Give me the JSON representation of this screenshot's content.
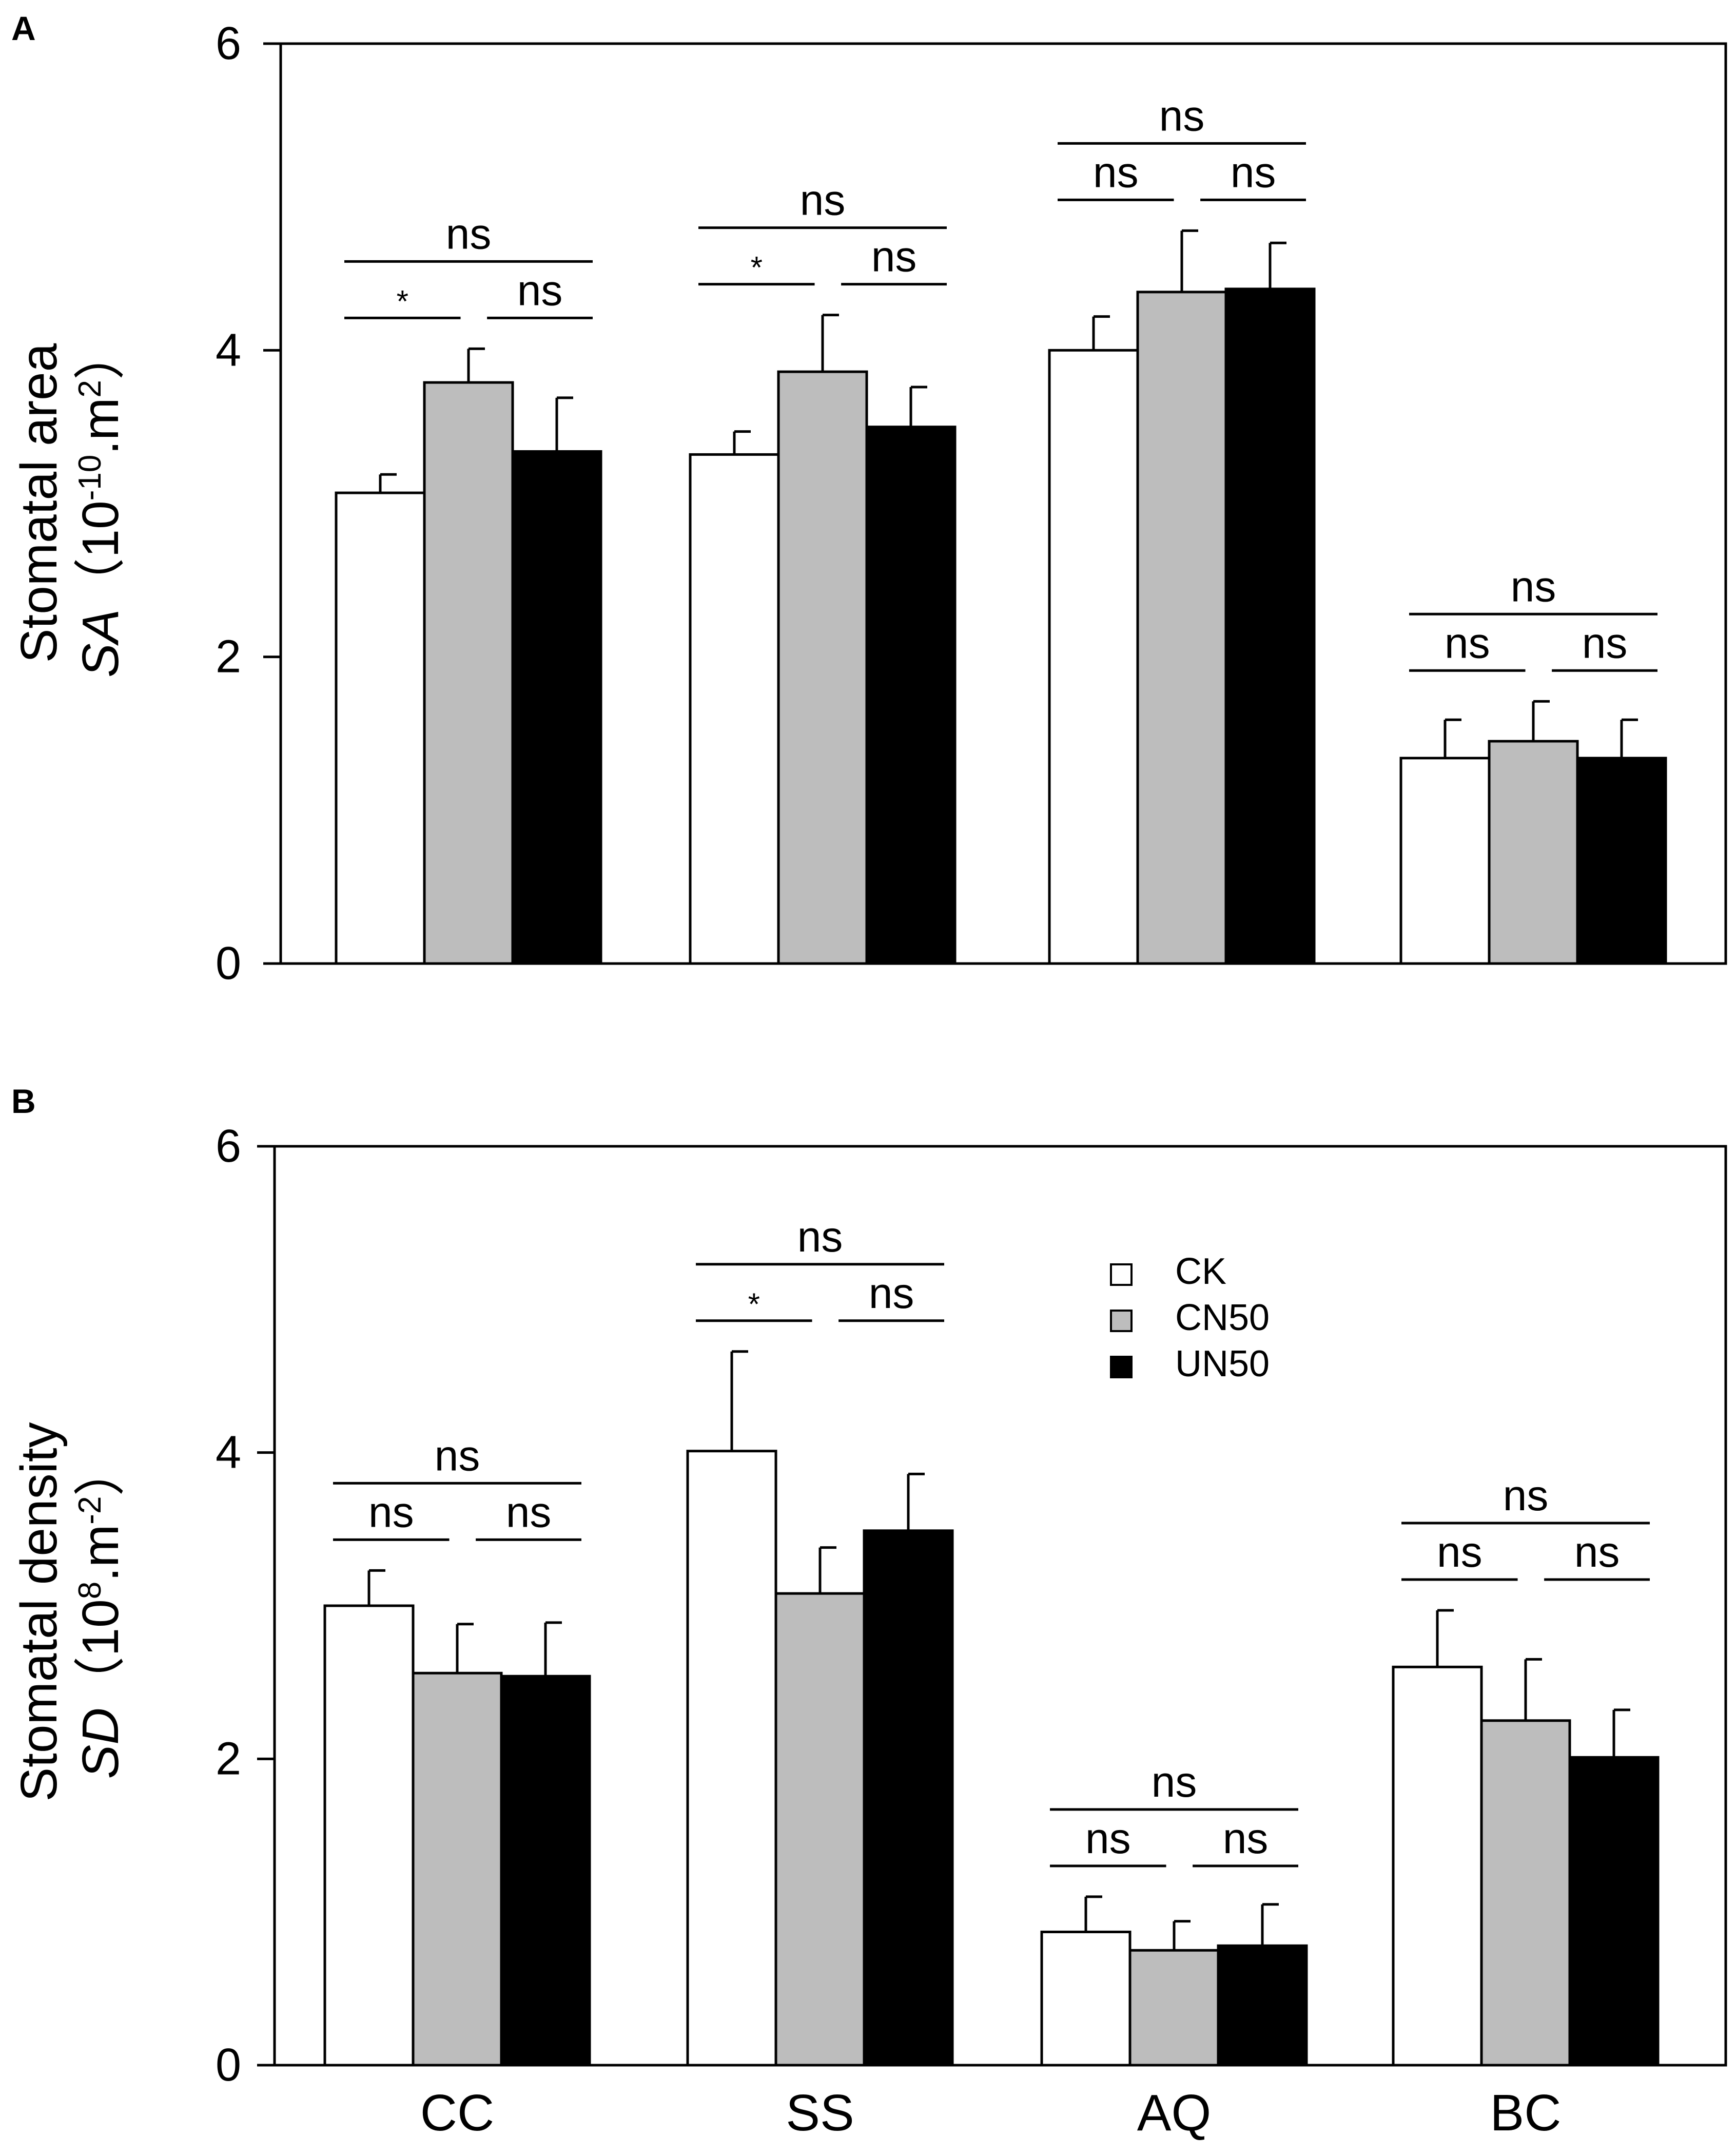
{
  "colors": {
    "CK": "#ffffff",
    "CN50": "#bdbdbd",
    "UN50": "#000000",
    "axis": "#000000",
    "background": "#ffffff"
  },
  "legend": {
    "position": "upper-middle of panel B",
    "entries": [
      {
        "name": "CK",
        "color": "#ffffff"
      },
      {
        "name": "CN50",
        "color": "#bdbdbd"
      },
      {
        "name": "UN50",
        "color": "#000000"
      }
    ]
  },
  "chart_data": [
    {
      "type": "bar",
      "panel": "A",
      "categories": [
        "CC",
        "SS",
        "AQ",
        "BC"
      ],
      "show_xticklabels": false,
      "ylabel": "Stomatal area",
      "ylabel_var": "SA",
      "ylabel_unit_pre": "（10",
      "ylabel_unit_sup1": "-10",
      "ylabel_unit_mid": ".m",
      "ylabel_unit_sup2": "2",
      "ylabel_unit_post": "）",
      "ylim": [
        0,
        6
      ],
      "yticks": [
        "0",
        "2",
        "4",
        "6"
      ],
      "series": [
        {
          "name": "CK",
          "values": [
            3.07,
            3.32,
            4.0,
            1.34
          ],
          "errors": [
            0.12,
            0.15,
            0.22,
            0.25
          ]
        },
        {
          "name": "CN50",
          "values": [
            3.79,
            3.86,
            4.38,
            1.45
          ],
          "errors": [
            0.22,
            0.37,
            0.4,
            0.26
          ]
        },
        {
          "name": "UN50",
          "values": [
            3.34,
            3.5,
            4.4,
            1.34
          ],
          "errors": [
            0.35,
            0.26,
            0.3,
            0.25
          ]
        }
      ],
      "annotations": [
        {
          "top": "ns",
          "left": "*",
          "right": "ns"
        },
        {
          "top": "ns",
          "left": "*",
          "right": "ns"
        },
        {
          "top": "ns",
          "left": "ns",
          "right": "ns"
        },
        {
          "top": "ns",
          "left": "ns",
          "right": "ns"
        }
      ]
    },
    {
      "type": "bar",
      "panel": "B",
      "categories": [
        "CC",
        "SS",
        "AQ",
        "BC"
      ],
      "show_xticklabels": true,
      "ylabel": "Stomatal density",
      "ylabel_var": "SD",
      "ylabel_unit_pre": "（10",
      "ylabel_unit_sup1": "8",
      "ylabel_unit_mid": ".m",
      "ylabel_unit_sup2": "-2",
      "ylabel_unit_post": "）",
      "ylim": [
        0,
        6
      ],
      "yticks": [
        "0",
        "2",
        "4",
        "6"
      ],
      "series": [
        {
          "name": "CK",
          "values": [
            3.0,
            4.01,
            0.87,
            2.6
          ],
          "errors": [
            0.23,
            0.65,
            0.23,
            0.37
          ]
        },
        {
          "name": "CN50",
          "values": [
            2.56,
            3.08,
            0.75,
            2.25
          ],
          "errors": [
            0.32,
            0.3,
            0.19,
            0.4
          ]
        },
        {
          "name": "UN50",
          "values": [
            2.54,
            3.49,
            0.78,
            2.01
          ],
          "errors": [
            0.35,
            0.37,
            0.27,
            0.31
          ]
        }
      ],
      "annotations": [
        {
          "top": "ns",
          "left": "ns",
          "right": "ns"
        },
        {
          "top": "ns",
          "left": "*",
          "right": "ns"
        },
        {
          "top": "ns",
          "left": "ns",
          "right": "ns"
        },
        {
          "top": "ns",
          "left": "ns",
          "right": "ns"
        }
      ]
    }
  ]
}
